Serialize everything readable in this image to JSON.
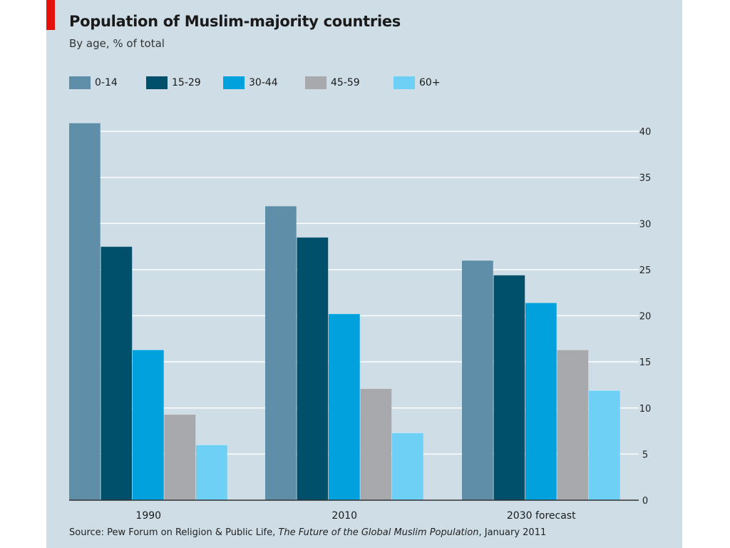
{
  "chart_data": {
    "type": "bar",
    "title": "Population of Muslim-majority countries",
    "subtitle": "By age, % of total",
    "categories": [
      "1990",
      "2010",
      "2030 forecast"
    ],
    "series": [
      {
        "name": "0-14",
        "color": "#5f8fa8",
        "values": [
          40.9,
          31.9,
          26.0
        ]
      },
      {
        "name": "15-29",
        "color": "#004f6b",
        "values": [
          27.5,
          28.5,
          24.4
        ]
      },
      {
        "name": "30-44",
        "color": "#00a1dd",
        "values": [
          16.3,
          20.2,
          21.4
        ]
      },
      {
        "name": "45-59",
        "color": "#a7a9ac",
        "values": [
          9.3,
          12.1,
          16.3
        ]
      },
      {
        "name": "60+",
        "color": "#6fd0f5",
        "values": [
          6.0,
          7.3,
          11.9
        ]
      }
    ],
    "ylim": [
      0,
      40
    ],
    "yticks": [
      0,
      5,
      10,
      15,
      20,
      25,
      30,
      35,
      40
    ],
    "y_axis_position": "right",
    "grid": true,
    "legend_position": "top-left"
  },
  "source": {
    "prefix": "Source: Pew Forum on Religion & Public Life, ",
    "italic": "The Future of the Global Muslim Population",
    "suffix": ", January 2011"
  },
  "colors": {
    "background": "#cedde6",
    "accent": "#e3120b",
    "gridline": "#ffffff"
  }
}
